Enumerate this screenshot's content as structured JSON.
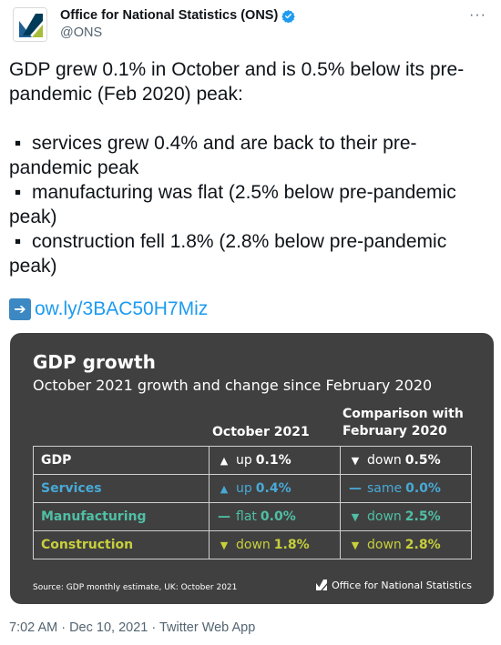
{
  "account": {
    "display_name": "Office for National Statistics (ONS)",
    "handle": "@ONS",
    "more_label": "···"
  },
  "tweet": {
    "intro": "GDP grew 0.1% in October and is 0.5% below its pre-pandemic (Feb 2020) peak:",
    "bullets": [
      "services grew 0.4% and are back to their pre-pandemic peak",
      "manufacturing was flat (2.5% below pre-pandemic peak)",
      "construction fell 1.8% (2.8% below pre-pandemic peak)"
    ],
    "bullet_symbol": "▪",
    "link_arrow": "➔",
    "link": "ow.ly/3BAC50H7Miz"
  },
  "card": {
    "title": "GDP growth",
    "subtitle": "October 2021 growth and change since February 2020",
    "col_october": "October 2021",
    "col_comparison_line1": "Comparison with",
    "col_comparison_line2": "February 2020",
    "rows": [
      {
        "label": "GDP",
        "color": "#ffffff",
        "oct": {
          "dir": "up",
          "word": "up",
          "value": "0.1%"
        },
        "cmp": {
          "dir": "down",
          "word": "down",
          "value": "0.5%"
        }
      },
      {
        "label": "Services",
        "color": "#48a9d6",
        "oct": {
          "dir": "up",
          "word": "up",
          "value": "0.4%"
        },
        "cmp": {
          "dir": "flat",
          "word": "same",
          "value": "0.0%"
        }
      },
      {
        "label": "Manufacturing",
        "color": "#4fbfa5",
        "oct": {
          "dir": "flat",
          "word": "flat",
          "value": "0.0%"
        },
        "cmp": {
          "dir": "down",
          "word": "down",
          "value": "2.5%"
        }
      },
      {
        "label": "Construction",
        "color": "#c7cf3b",
        "oct": {
          "dir": "down",
          "word": "down",
          "value": "1.8%"
        },
        "cmp": {
          "dir": "down",
          "word": "down",
          "value": "2.8%"
        }
      }
    ],
    "source": "Source: GDP monthly estimate, UK: October 2021",
    "logo_text": "Office for National Statistics"
  },
  "footer": {
    "meta": "7:02 AM · Dec 10, 2021 · Twitter Web App"
  }
}
